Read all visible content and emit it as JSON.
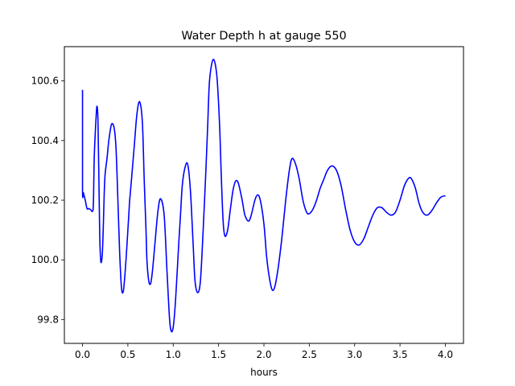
{
  "chart_data": {
    "type": "line",
    "title": "Water Depth h at gauge 550",
    "xlabel": "hours",
    "ylabel": "",
    "xlim": [
      -0.2,
      4.2
    ],
    "ylim": [
      99.72,
      100.715
    ],
    "grid": false,
    "xticks": [
      0.0,
      0.5,
      1.0,
      1.5,
      2.0,
      2.5,
      3.0,
      3.5,
      4.0
    ],
    "xtick_labels": [
      "0.0",
      "0.5",
      "1.0",
      "1.5",
      "2.0",
      "2.5",
      "3.0",
      "3.5",
      "4.0"
    ],
    "yticks": [
      99.8,
      100.0,
      100.2,
      100.4,
      100.6
    ],
    "ytick_labels": [
      "99.8",
      "100.0",
      "100.2",
      "100.4",
      "100.6"
    ],
    "series": [
      {
        "color": "#0000ff",
        "x": [
          0.0,
          0.0,
          0.01,
          0.03,
          0.05,
          0.07,
          0.09,
          0.11,
          0.12,
          0.13,
          0.15,
          0.16,
          0.17,
          0.18,
          0.19,
          0.2,
          0.21,
          0.22,
          0.23,
          0.24,
          0.25,
          0.27,
          0.29,
          0.32,
          0.35,
          0.37,
          0.39,
          0.41,
          0.43,
          0.45,
          0.47,
          0.49,
          0.5,
          0.51,
          0.52,
          0.54,
          0.57,
          0.6,
          0.63,
          0.66,
          0.68,
          0.7,
          0.71,
          0.73,
          0.75,
          0.77,
          0.8,
          0.83,
          0.86,
          0.9,
          0.93,
          0.96,
          0.98,
          1.0,
          1.02,
          1.04,
          1.06,
          1.08,
          1.1,
          1.13,
          1.16,
          1.19,
          1.22,
          1.24,
          1.27,
          1.3,
          1.33,
          1.36,
          1.38,
          1.4,
          1.44,
          1.48,
          1.51,
          1.53,
          1.55,
          1.57,
          1.6,
          1.63,
          1.66,
          1.69,
          1.72,
          1.76,
          1.79,
          1.83,
          1.86,
          1.9,
          1.93,
          1.96,
          2.0,
          2.03,
          2.06,
          2.09,
          2.12,
          2.16,
          2.2,
          2.24,
          2.28,
          2.31,
          2.35,
          2.39,
          2.43,
          2.47,
          2.5,
          2.54,
          2.58,
          2.62,
          2.66,
          2.7,
          2.75,
          2.8,
          2.85,
          2.9,
          2.95,
          3.0,
          3.05,
          3.1,
          3.15,
          3.2,
          3.25,
          3.3,
          3.35,
          3.4,
          3.45,
          3.5,
          3.55,
          3.6,
          3.63,
          3.67,
          3.71,
          3.75,
          3.8,
          3.85,
          3.9,
          3.95,
          4.0
        ],
        "y": [
          100.57,
          100.235,
          100.225,
          100.2,
          100.172,
          100.172,
          100.168,
          100.163,
          100.19,
          100.35,
          100.48,
          100.515,
          100.47,
          100.28,
          100.08,
          100.0,
          99.995,
          100.03,
          100.12,
          100.23,
          100.29,
          100.34,
          100.4,
          100.455,
          100.44,
          100.37,
          100.2,
          100.02,
          99.905,
          99.895,
          99.96,
          100.05,
          100.1,
          100.15,
          100.2,
          100.27,
          100.38,
          100.49,
          100.53,
          100.46,
          100.27,
          100.1,
          100.0,
          99.93,
          99.92,
          99.96,
          100.06,
          100.16,
          100.205,
          100.15,
          99.97,
          99.8,
          99.76,
          99.775,
          99.84,
          99.94,
          100.05,
          100.15,
          100.25,
          100.31,
          100.32,
          100.23,
          100.05,
          99.93,
          99.89,
          99.93,
          100.1,
          100.3,
          100.45,
          100.6,
          100.672,
          100.62,
          100.46,
          100.28,
          100.13,
          100.08,
          100.1,
          100.17,
          100.235,
          100.265,
          100.255,
          100.2,
          100.15,
          100.13,
          100.15,
          100.2,
          100.218,
          100.2,
          100.12,
          100.01,
          99.94,
          99.9,
          99.91,
          99.98,
          100.08,
          100.2,
          100.3,
          100.34,
          100.32,
          100.27,
          100.2,
          100.16,
          100.155,
          100.17,
          100.2,
          100.24,
          100.27,
          100.3,
          100.315,
          100.3,
          100.25,
          100.17,
          100.1,
          100.06,
          100.05,
          100.07,
          100.11,
          100.15,
          100.175,
          100.175,
          100.16,
          100.15,
          100.16,
          100.2,
          100.25,
          100.275,
          100.27,
          100.24,
          100.19,
          100.16,
          100.15,
          100.165,
          100.19,
          100.21,
          100.215
        ]
      }
    ]
  }
}
